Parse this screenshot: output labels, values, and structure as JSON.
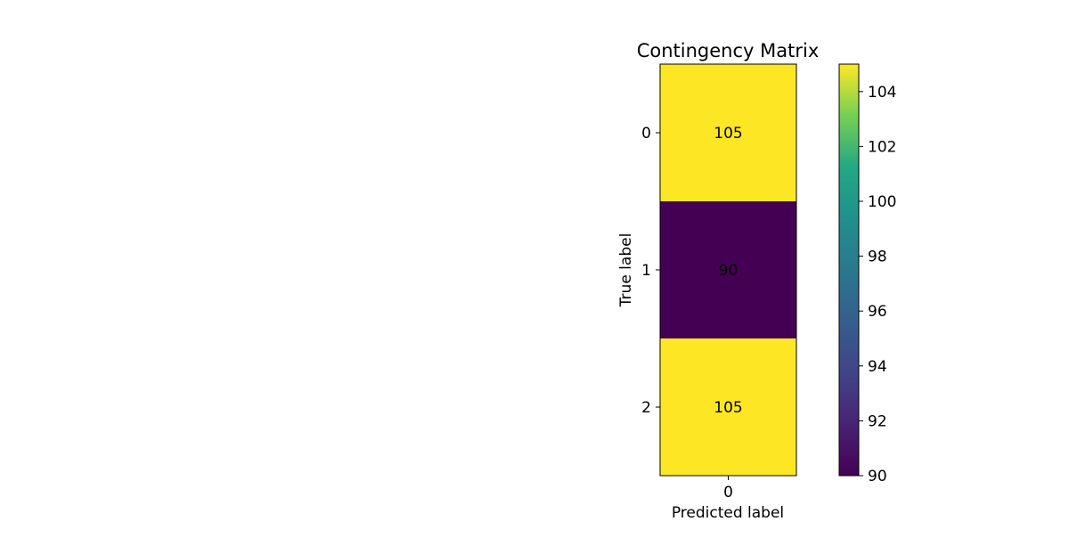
{
  "chart_data": {
    "type": "heatmap",
    "title": "Contingency Matrix",
    "xlabel": "Predicted label",
    "ylabel": "True label",
    "x_categories": [
      "0"
    ],
    "y_categories": [
      "0",
      "1",
      "2"
    ],
    "values": [
      [
        105
      ],
      [
        90
      ],
      [
        105
      ]
    ],
    "colorbar": {
      "colormap": "viridis",
      "range": [
        90,
        105
      ],
      "ticks": [
        90,
        92,
        94,
        96,
        98,
        100,
        102,
        104
      ]
    },
    "colors": {
      "low": "#440154",
      "high": "#fde725"
    }
  }
}
